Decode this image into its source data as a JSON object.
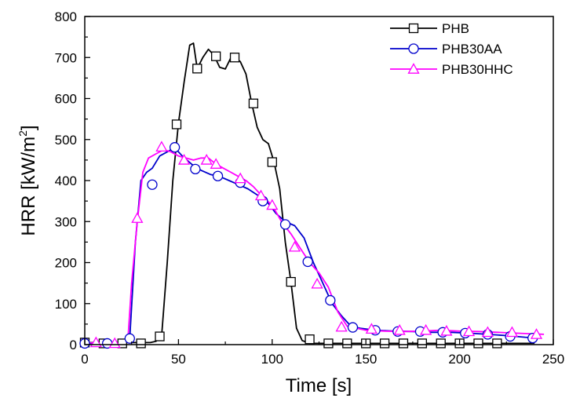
{
  "chart_data": {
    "type": "line",
    "title": "",
    "xlabel": "Time [s]",
    "ylabel_main": "HRR [kW/m",
    "ylabel_sup": "2",
    "ylabel_close": "]",
    "xlim": [
      0,
      250
    ],
    "ylim": [
      0,
      800
    ],
    "xticks": [
      0,
      50,
      100,
      150,
      200,
      250
    ],
    "yticks": [
      0,
      100,
      200,
      300,
      400,
      500,
      600,
      700,
      800
    ],
    "grid": false,
    "legend_position": "top-right",
    "series": [
      {
        "name": "PHB",
        "color": "#000000",
        "marker": "square",
        "x": [
          0,
          10,
          20,
          28,
          35,
          38,
          41,
          44,
          47,
          50,
          53,
          56,
          58,
          60,
          63,
          66,
          69,
          72,
          75,
          78,
          80,
          83,
          86,
          89,
          92,
          95,
          98,
          101,
          104,
          107,
          110,
          113,
          116,
          120,
          130,
          140,
          150,
          160,
          170,
          180,
          190,
          200,
          210,
          220,
          230,
          240
        ],
        "y": [
          5,
          5,
          5,
          5,
          5,
          8,
          20,
          200,
          400,
          540,
          640,
          730,
          735,
          673,
          700,
          720,
          705,
          676,
          672,
          700,
          700,
          690,
          660,
          590,
          530,
          500,
          490,
          445,
          380,
          250,
          153,
          40,
          10,
          3,
          3,
          3,
          3,
          3,
          3,
          3,
          3,
          3,
          3,
          3,
          3,
          3
        ],
        "marker_x": [
          0,
          10,
          20,
          30,
          40,
          49,
          60,
          70,
          80,
          90,
          100,
          110,
          120,
          130,
          140,
          150,
          160,
          170,
          180,
          190,
          200,
          210,
          220
        ],
        "marker_y": [
          5,
          3,
          3,
          3,
          20,
          537,
          673,
          703,
          700,
          588,
          445,
          153,
          13,
          3,
          3,
          3,
          3,
          3,
          3,
          3,
          3,
          3,
          3
        ]
      },
      {
        "name": "PHB30AA",
        "color": "#0000cc",
        "marker": "circle",
        "x": [
          0,
          10,
          20,
          24,
          27,
          30,
          33,
          36,
          40,
          44,
          48,
          52,
          57,
          62,
          67,
          72,
          77,
          82,
          87,
          92,
          97,
          102,
          107,
          112,
          117,
          122,
          127,
          132,
          137,
          142,
          147,
          155,
          165,
          175,
          185,
          195,
          205,
          215,
          225,
          235,
          242
        ],
        "y": [
          3,
          3,
          5,
          15,
          250,
          400,
          420,
          430,
          460,
          470,
          480,
          460,
          440,
          425,
          415,
          410,
          400,
          390,
          380,
          365,
          350,
          320,
          300,
          290,
          260,
          200,
          150,
          100,
          70,
          45,
          40,
          35,
          33,
          32,
          30,
          30,
          28,
          25,
          22,
          18,
          16
        ],
        "marker_x": [
          0,
          12,
          24,
          36,
          48,
          59,
          71,
          83,
          95,
          107,
          119,
          131,
          143,
          155,
          167,
          179,
          191,
          203,
          215,
          227,
          239
        ],
        "marker_y": [
          3,
          3,
          15,
          390,
          481,
          428,
          411,
          395,
          350,
          293,
          202,
          108,
          42,
          35,
          32,
          32,
          30,
          28,
          25,
          20,
          16
        ]
      },
      {
        "name": "PHB30HHC",
        "color": "#ff00ff",
        "marker": "triangle",
        "x": [
          0,
          10,
          20,
          23,
          25,
          28,
          31,
          34,
          38,
          42,
          46,
          50,
          54,
          58,
          62,
          66,
          70,
          74,
          78,
          82,
          86,
          90,
          95,
          100,
          105,
          110,
          115,
          120,
          125,
          130,
          135,
          140,
          145,
          150,
          160,
          170,
          180,
          190,
          200,
          210,
          220,
          230,
          240,
          245
        ],
        "y": [
          5,
          3,
          3,
          10,
          150,
          300,
          420,
          455,
          465,
          475,
          470,
          460,
          455,
          450,
          455,
          455,
          440,
          430,
          420,
          410,
          400,
          385,
          360,
          340,
          300,
          270,
          235,
          200,
          175,
          140,
          80,
          45,
          40,
          35,
          33,
          32,
          33,
          35,
          33,
          32,
          30,
          28,
          26,
          25
        ],
        "marker_x": [
          6,
          16,
          28,
          41,
          53,
          65,
          70,
          83,
          94,
          100,
          112,
          124,
          137,
          153,
          168,
          182,
          193,
          205,
          215,
          228,
          241
        ],
        "marker_y": [
          5,
          3,
          308,
          482,
          450,
          450,
          440,
          405,
          363,
          340,
          238,
          148,
          43,
          38,
          35,
          35,
          33,
          32,
          30,
          30,
          25
        ]
      }
    ]
  }
}
